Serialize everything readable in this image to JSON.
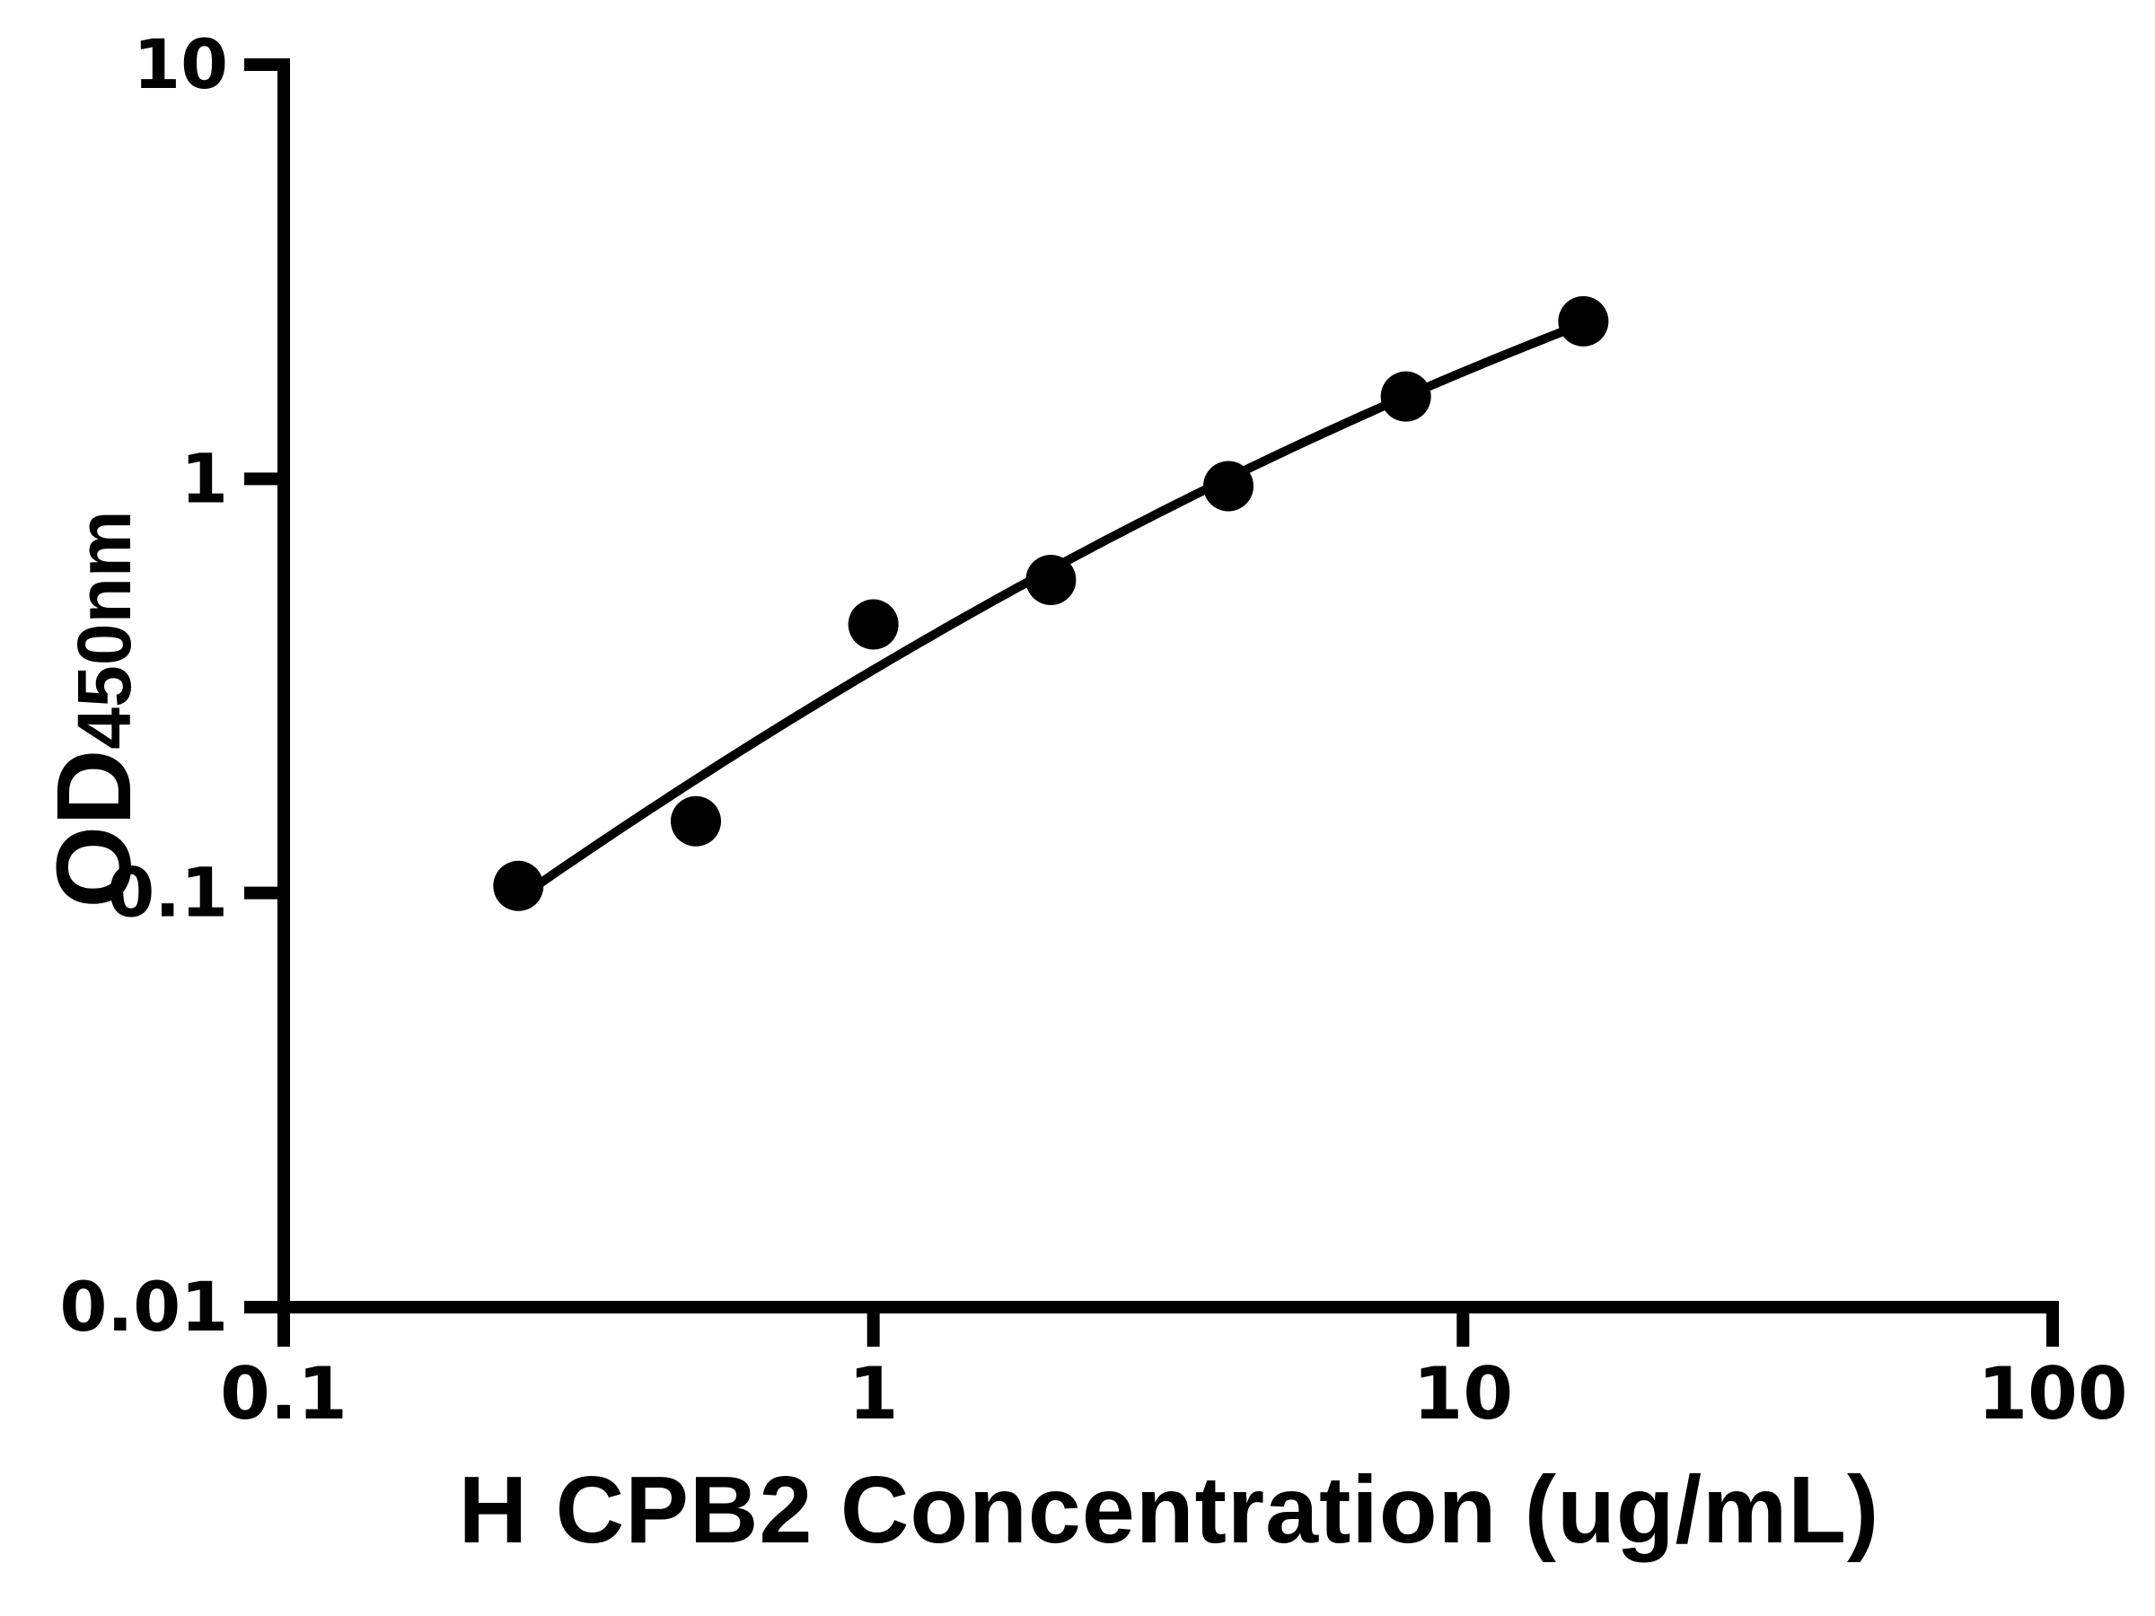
{
  "chart_data": {
    "type": "scatter",
    "title": "",
    "xlabel": "H CPB2 Concentration (ug/mL)",
    "ylabel": "OD450nm",
    "ylabel_parts": {
      "main": "OD",
      "sub": "450nm"
    },
    "xscale": "log",
    "yscale": "log",
    "xlim": [
      0.1,
      100
    ],
    "ylim": [
      0.01,
      10
    ],
    "grid": false,
    "legend": null,
    "x": [
      0.25,
      0.5,
      1,
      2,
      4,
      8,
      16
    ],
    "y": [
      0.104,
      0.149,
      0.445,
      0.57,
      0.96,
      1.58,
      2.4
    ],
    "x_tick_labels": [
      "0.1",
      "1",
      "10",
      "100"
    ],
    "x_tick_values": [
      0.1,
      1,
      10,
      100
    ],
    "y_tick_labels": [
      "10",
      "1",
      "0.1",
      "0.01"
    ],
    "y_tick_values": [
      10,
      1,
      0.1,
      0.01
    ],
    "fit_curve": {
      "type": "quadratic_loglog",
      "description": "log10(y) = a + b*u + c*u^2, u = log10(x)",
      "a": -0.4612,
      "b": 0.8422,
      "c": -0.123,
      "x_range": [
        0.25,
        16
      ]
    },
    "marker": {
      "shape": "circle",
      "color": "#000000",
      "radius_px": 28
    },
    "curve_color": "#000000",
    "axis_color": "#000000",
    "background_color": "#ffffff"
  }
}
